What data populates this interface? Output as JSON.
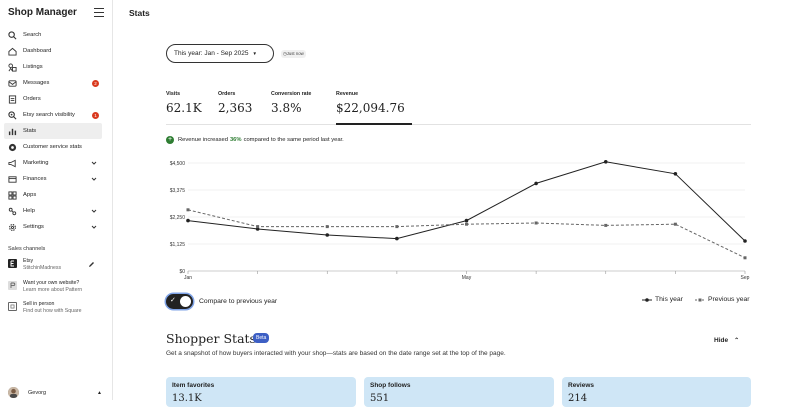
{
  "sidebar": {
    "brand": "Shop Manager",
    "items": [
      {
        "label": "Search",
        "icon": "search-icon"
      },
      {
        "label": "Dashboard",
        "icon": "home-icon"
      },
      {
        "label": "Listings",
        "icon": "listings-icon"
      },
      {
        "label": "Messages",
        "icon": "messages-icon",
        "badge": "2"
      },
      {
        "label": "Orders",
        "icon": "orders-icon"
      },
      {
        "label": "Etsy search visibility",
        "icon": "search-visibility-icon",
        "badge": "1"
      },
      {
        "label": "Stats",
        "icon": "stats-icon",
        "active": true
      },
      {
        "label": "Customer service stats",
        "icon": "customer-service-icon"
      },
      {
        "label": "Marketing",
        "icon": "marketing-icon",
        "expandable": true
      },
      {
        "label": "Finances",
        "icon": "finances-icon",
        "expandable": true
      },
      {
        "label": "Apps",
        "icon": "apps-icon"
      },
      {
        "label": "Help",
        "icon": "help-icon",
        "expandable": true
      },
      {
        "label": "Settings",
        "icon": "settings-icon",
        "expandable": true
      }
    ],
    "sales_channels_label": "Sales channels",
    "channels": [
      {
        "title": "Etsy",
        "subtitle": "StitchinMadness"
      },
      {
        "title": "Want your own website?",
        "subtitle": "Learn more about Pattern"
      },
      {
        "title": "Sell in person",
        "subtitle": "Find out how with Square"
      }
    ],
    "user_name": "Gevorg"
  },
  "header": {
    "title": "Stats"
  },
  "date_range": {
    "label": "This year: Jan - Sep 2025",
    "updated": "Just now"
  },
  "metrics": [
    {
      "label": "Visits",
      "value": "62.1K"
    },
    {
      "label": "Orders",
      "value": "2,363"
    },
    {
      "label": "Conversion rate",
      "value": "3.8%"
    },
    {
      "label": "Revenue",
      "value": "$22,094.76"
    }
  ],
  "notice": {
    "before": "Revenue increased",
    "percent": "36%",
    "after": "compared to the same period last year."
  },
  "chart_data": {
    "type": "line",
    "x": [
      "Jan",
      "Feb",
      "Mar",
      "Apr",
      "May",
      "Jun",
      "Jul",
      "Aug",
      "Sep"
    ],
    "x_tick_labels": [
      "Jan",
      "May",
      "Sep"
    ],
    "y_ticks": [
      "$0",
      "$1,125",
      "$2,250",
      "$3,375",
      "$4,500"
    ],
    "ylim": [
      0,
      4500
    ],
    "grid": true,
    "series": [
      {
        "name": "This year",
        "style": "solid",
        "color": "#222222",
        "values": [
          2100,
          1750,
          1500,
          1350,
          2100,
          3650,
          4550,
          4050,
          1250
        ]
      },
      {
        "name": "Previous year",
        "style": "dashed",
        "color": "#666666",
        "values": [
          2550,
          1850,
          1850,
          1850,
          1950,
          2000,
          1900,
          1950,
          550
        ]
      }
    ]
  },
  "compare_toggle": {
    "label": "Compare to previous year",
    "on": true
  },
  "shopper_stats": {
    "title": "Shopper Stats",
    "badge": "Beta",
    "hide_label": "Hide",
    "subtitle": "Get a snapshot of how buyers interacted with your shop—stats are based on the date range set at the top of the page.",
    "cards": [
      {
        "label": "Item favorites",
        "value": "13.1K"
      },
      {
        "label": "Shop follows",
        "value": "551"
      },
      {
        "label": "Reviews",
        "value": "214"
      }
    ]
  }
}
